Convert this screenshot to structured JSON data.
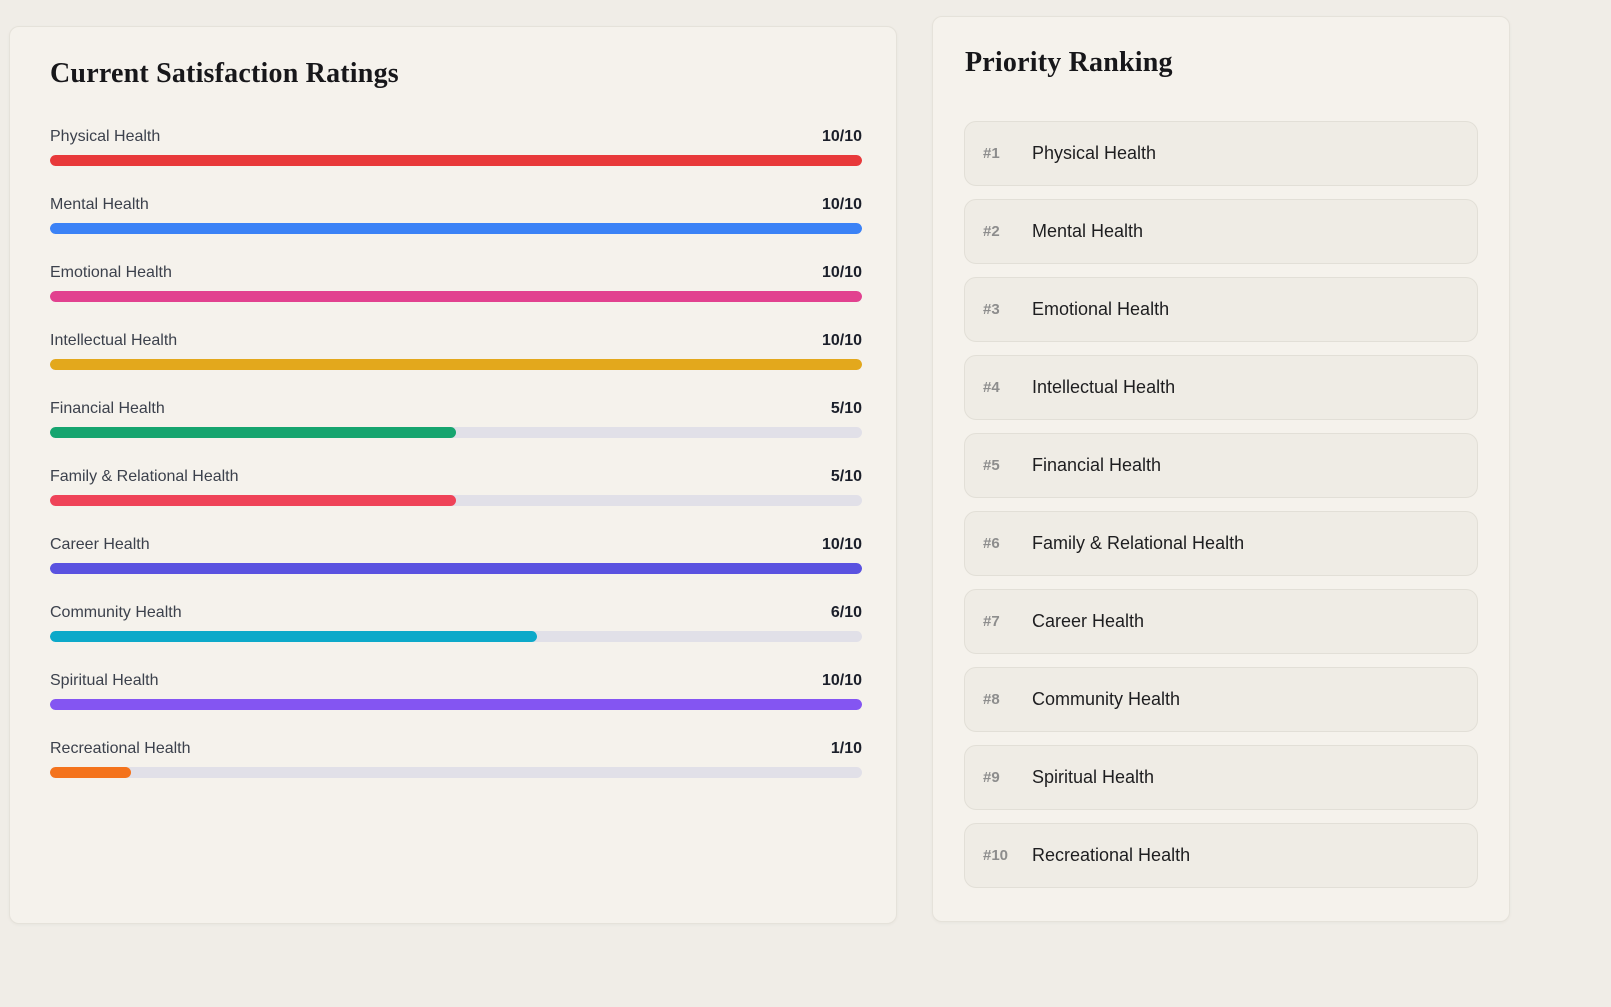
{
  "left_panel": {
    "title": "Current Satisfaction Ratings",
    "track_color": "#e1e0e8",
    "ratings": [
      {
        "label": "Physical Health",
        "value": "10/10",
        "score": 10,
        "max": 10,
        "color": "#e8393a"
      },
      {
        "label": "Mental Health",
        "value": "10/10",
        "score": 10,
        "max": 10,
        "color": "#3b82f6"
      },
      {
        "label": "Emotional Health",
        "value": "10/10",
        "score": 10,
        "max": 10,
        "color": "#e2418f"
      },
      {
        "label": "Intellectual Health",
        "value": "10/10",
        "score": 10,
        "max": 10,
        "color": "#e3a81c"
      },
      {
        "label": "Financial Health",
        "value": "5/10",
        "score": 5,
        "max": 10,
        "color": "#16a56f"
      },
      {
        "label": "Family & Relational Health",
        "value": "5/10",
        "score": 5,
        "max": 10,
        "color": "#ef4358"
      },
      {
        "label": "Career Health",
        "value": "10/10",
        "score": 10,
        "max": 10,
        "color": "#5a52e0"
      },
      {
        "label": "Community Health",
        "value": "6/10",
        "score": 6,
        "max": 10,
        "color": "#0ca9c9"
      },
      {
        "label": "Spiritual Health",
        "value": "10/10",
        "score": 10,
        "max": 10,
        "color": "#8455f2"
      },
      {
        "label": "Recreational Health",
        "value": "1/10",
        "score": 1,
        "max": 10,
        "color": "#f4731c"
      }
    ]
  },
  "right_panel": {
    "title": "Priority Ranking",
    "rankings": [
      {
        "rank": "#1",
        "label": "Physical Health"
      },
      {
        "rank": "#2",
        "label": "Mental Health"
      },
      {
        "rank": "#3",
        "label": "Emotional Health"
      },
      {
        "rank": "#4",
        "label": "Intellectual Health"
      },
      {
        "rank": "#5",
        "label": "Financial Health"
      },
      {
        "rank": "#6",
        "label": "Family & Relational Health"
      },
      {
        "rank": "#7",
        "label": "Career Health"
      },
      {
        "rank": "#8",
        "label": "Community Health"
      },
      {
        "rank": "#9",
        "label": "Spiritual Health"
      },
      {
        "rank": "#10",
        "label": "Recreational Health"
      }
    ]
  }
}
